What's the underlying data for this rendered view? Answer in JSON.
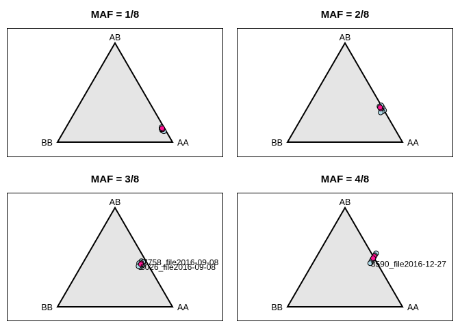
{
  "chart_data": [
    {
      "type": "scatter",
      "title": "MAF = 1/8",
      "vertices": {
        "top": "AB",
        "left": "BB",
        "right": "AA"
      },
      "points": [
        {
          "AA": 0.85,
          "AB": 0.13,
          "BB": 0.02,
          "color": "#add8e6"
        },
        {
          "AA": 0.84,
          "AB": 0.14,
          "BB": 0.02,
          "color": "#add8e6"
        },
        {
          "AA": 0.86,
          "AB": 0.12,
          "BB": 0.02,
          "color": "#add8e6"
        },
        {
          "AA": 0.83,
          "AB": 0.15,
          "BB": 0.02,
          "color": "#add8e6"
        },
        {
          "AA": 0.85,
          "AB": 0.12,
          "BB": 0.03,
          "color": "#add8e6"
        },
        {
          "AA": 0.84,
          "AB": 0.13,
          "BB": 0.03,
          "color": "#add8e6"
        },
        {
          "AA": 0.87,
          "AB": 0.11,
          "BB": 0.02,
          "color": "#add8e6"
        },
        {
          "AA": 0.85,
          "AB": 0.13,
          "BB": 0.02,
          "color": "#ff1493"
        },
        {
          "AA": 0.84,
          "AB": 0.14,
          "BB": 0.02,
          "color": "#ff1493"
        }
      ],
      "annotations": []
    },
    {
      "type": "scatter",
      "title": "MAF = 2/8",
      "vertices": {
        "top": "AB",
        "left": "BB",
        "right": "AA"
      },
      "points": [
        {
          "AA": 0.64,
          "AB": 0.36,
          "BB": 0.0,
          "color": "#add8e6"
        },
        {
          "AA": 0.66,
          "AB": 0.34,
          "BB": 0.0,
          "color": "#add8e6"
        },
        {
          "AA": 0.68,
          "AB": 0.32,
          "BB": 0.0,
          "color": "#add8e6"
        },
        {
          "AA": 0.63,
          "AB": 0.37,
          "BB": 0.0,
          "color": "#add8e6"
        },
        {
          "AA": 0.67,
          "AB": 0.31,
          "BB": 0.02,
          "color": "#add8e6"
        },
        {
          "AA": 0.65,
          "AB": 0.33,
          "BB": 0.02,
          "color": "#add8e6"
        },
        {
          "AA": 0.62,
          "AB": 0.36,
          "BB": 0.02,
          "color": "#add8e6"
        },
        {
          "AA": 0.66,
          "AB": 0.3,
          "BB": 0.04,
          "color": "#add8e6"
        },
        {
          "AA": 0.64,
          "AB": 0.34,
          "BB": 0.02,
          "color": "#ff1493"
        },
        {
          "AA": 0.63,
          "AB": 0.35,
          "BB": 0.02,
          "color": "#ff1493"
        }
      ],
      "annotations": []
    },
    {
      "type": "scatter",
      "title": "MAF = 3/8",
      "vertices": {
        "top": "AB",
        "left": "BB",
        "right": "AA"
      },
      "points": [
        {
          "AA": 0.5,
          "AB": 0.46,
          "BB": 0.04,
          "color": "#add8e6"
        },
        {
          "AA": 0.52,
          "AB": 0.45,
          "BB": 0.03,
          "color": "#add8e6"
        },
        {
          "AA": 0.51,
          "AB": 0.43,
          "BB": 0.06,
          "color": "#add8e6"
        },
        {
          "AA": 0.53,
          "AB": 0.42,
          "BB": 0.05,
          "color": "#add8e6"
        },
        {
          "AA": 0.49,
          "AB": 0.44,
          "BB": 0.07,
          "color": "#add8e6"
        },
        {
          "AA": 0.52,
          "AB": 0.4,
          "BB": 0.08,
          "color": "#add8e6"
        },
        {
          "AA": 0.5,
          "AB": 0.41,
          "BB": 0.09,
          "color": "#add8e6"
        },
        {
          "AA": 0.51,
          "AB": 0.44,
          "BB": 0.05,
          "color": "#ff1493"
        },
        {
          "AA": 0.51,
          "AB": 0.43,
          "BB": 0.06,
          "color": "#ff1493"
        }
      ],
      "annotations": [
        {
          "text": "7758_file2016-09-08",
          "AA": 0.52,
          "AB": 0.45,
          "BB": 0.03,
          "anchor": "start"
        },
        {
          "text": "8026_file2016-09-08",
          "AA": 0.52,
          "AB": 0.4,
          "BB": 0.08,
          "anchor": "start"
        }
      ]
    },
    {
      "type": "scatter",
      "title": "MAF = 4/8",
      "vertices": {
        "top": "AB",
        "left": "BB",
        "right": "AA"
      },
      "points": [
        {
          "AA": 0.5,
          "AB": 0.54,
          "BB": -0.04,
          "color": "#add8e6"
        },
        {
          "AA": 0.5,
          "AB": 0.52,
          "BB": -0.02,
          "color": "#add8e6"
        },
        {
          "AA": 0.5,
          "AB": 0.5,
          "BB": 0.0,
          "color": "#add8e6"
        },
        {
          "AA": 0.5,
          "AB": 0.48,
          "BB": 0.02,
          "color": "#add8e6"
        },
        {
          "AA": 0.5,
          "AB": 0.46,
          "BB": 0.04,
          "color": "#add8e6"
        },
        {
          "AA": 0.5,
          "AB": 0.44,
          "BB": 0.06,
          "color": "#add8e6"
        },
        {
          "AA": 0.5,
          "AB": 0.51,
          "BB": -0.01,
          "color": "#ff1493"
        },
        {
          "AA": 0.5,
          "AB": 0.49,
          "BB": 0.01,
          "color": "#ff1493"
        }
      ],
      "annotations": [
        {
          "text": "8590_file2016-12-27",
          "AA": 0.51,
          "AB": 0.43,
          "BB": 0.06,
          "anchor": "start"
        }
      ]
    }
  ],
  "colors": {
    "triangle_fill": "#e5e5e5",
    "point_fill": "#add8e6",
    "highlight_fill": "#ff1493",
    "outline": "#000000"
  }
}
